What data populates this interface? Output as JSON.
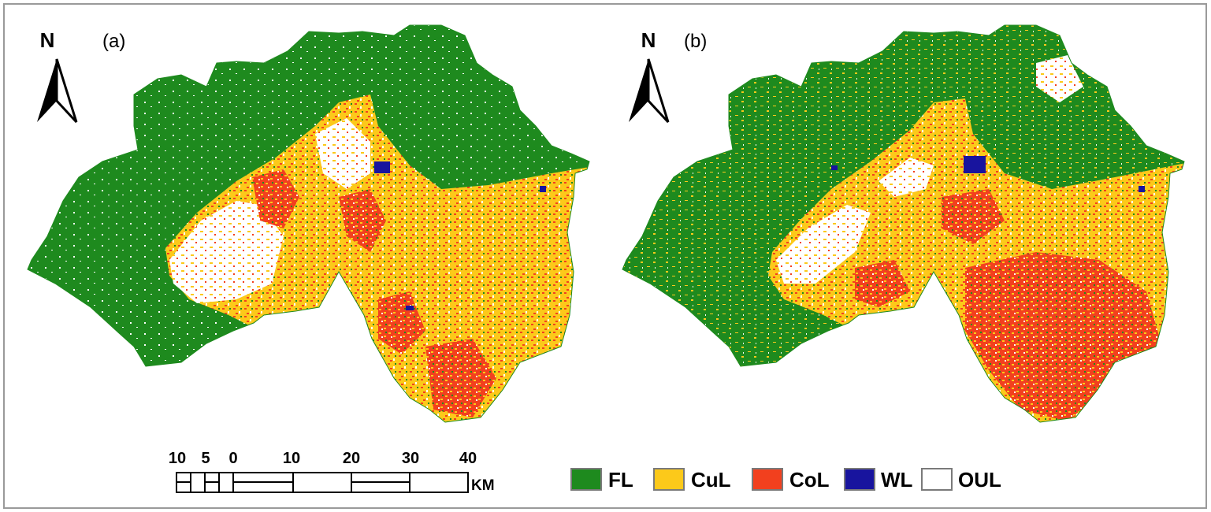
{
  "panels": [
    {
      "label": "(a)",
      "north": "N"
    },
    {
      "label": "(b)",
      "north": "N"
    }
  ],
  "scale_bar": {
    "ticks": [
      "10",
      "5",
      "0",
      "10",
      "20",
      "30",
      "40"
    ],
    "unit": "KM"
  },
  "legend": [
    {
      "label": "FL",
      "color": "#1e8a1e"
    },
    {
      "label": "CuL",
      "color": "#fcc91a"
    },
    {
      "label": "CoL",
      "color": "#f2401e"
    },
    {
      "label": "WL",
      "color": "#18149e"
    },
    {
      "label": "OUL",
      "color": "#ffffff"
    }
  ],
  "colors": {
    "forest": "#1e8a1e",
    "cultivated": "#fcc91a",
    "construction": "#f2401e",
    "water": "#18149e",
    "other": "#ffffff",
    "frame": "#9a9a9a"
  }
}
